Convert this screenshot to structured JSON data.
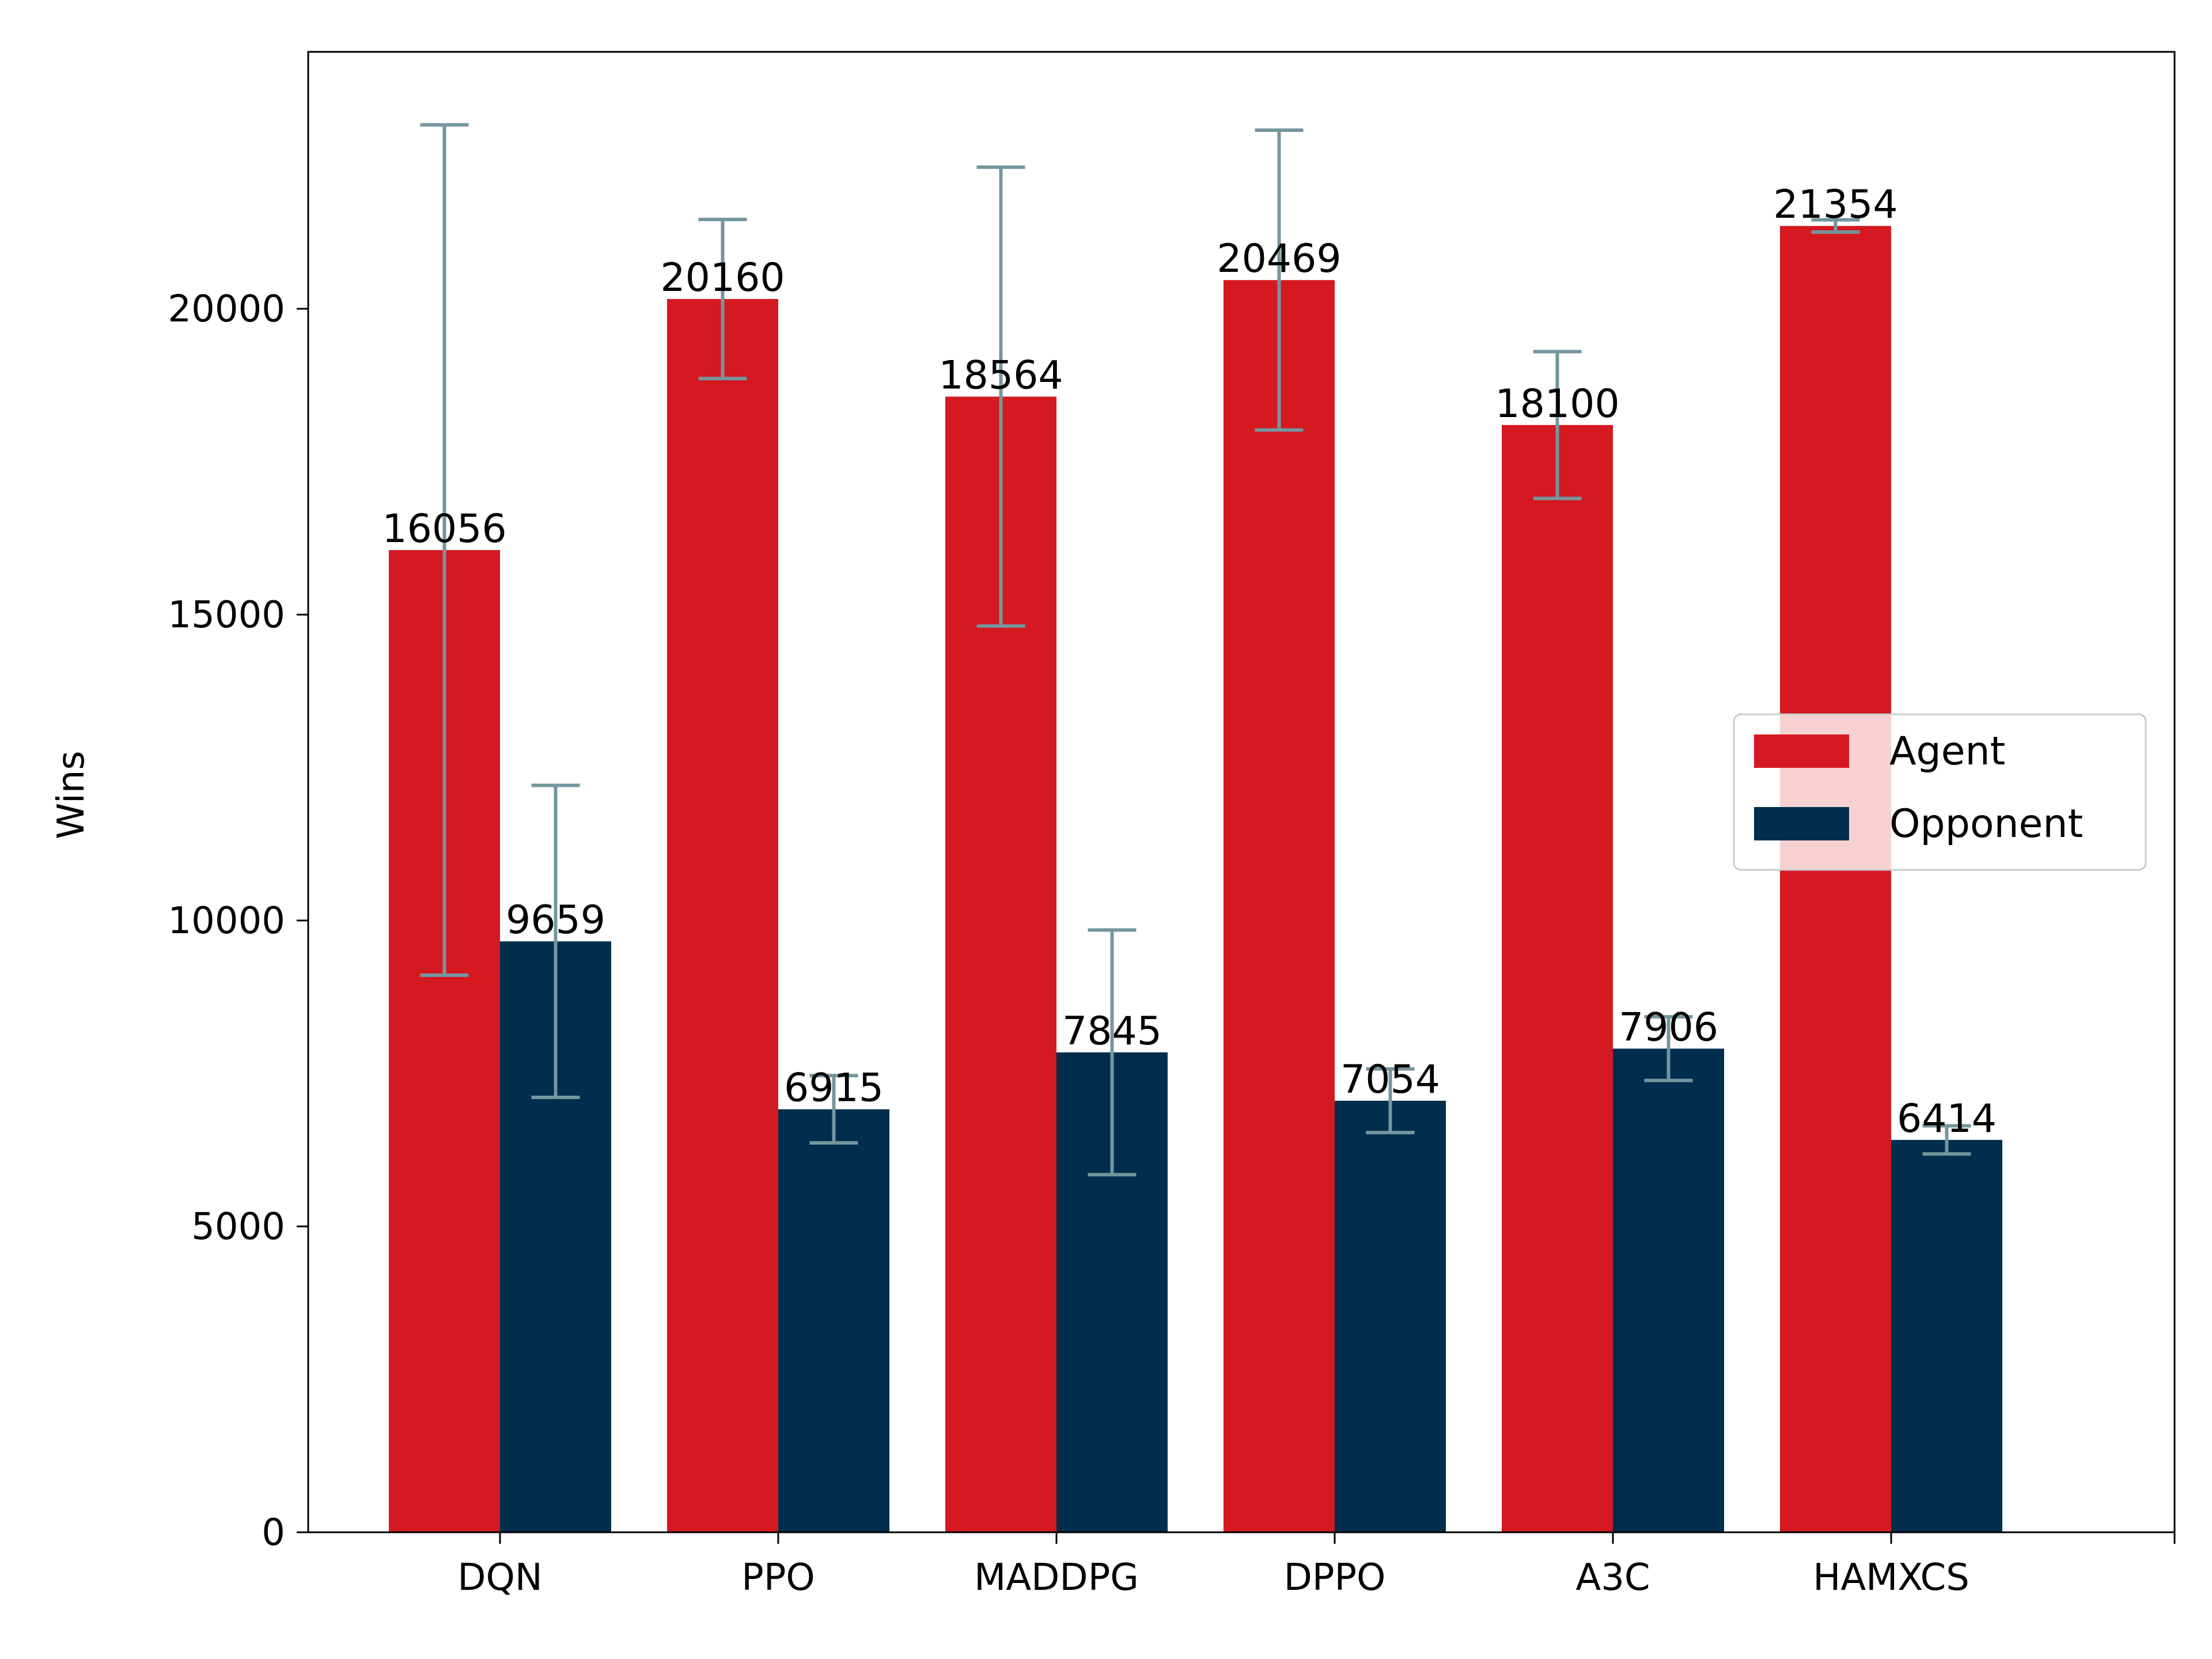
{
  "chart_data": {
    "type": "bar",
    "title": "",
    "xlabel": "",
    "ylabel": "Wins",
    "ylim": [
      0,
      24200
    ],
    "yticks": [
      0,
      5000,
      10000,
      15000,
      20000
    ],
    "grid": false,
    "legend_position": "center-right",
    "categories": [
      "DQN",
      "PPO",
      "MADDPG",
      "DPPO",
      "A3C",
      "HAMXCS"
    ],
    "series": [
      {
        "name": "Agent",
        "color": "#d41920",
        "values": [
          16056,
          20160,
          18564,
          20469,
          18100,
          21354
        ],
        "errors": [
          6950,
          1300,
          3750,
          2450,
          1200,
          100
        ]
      },
      {
        "name": "Opponent",
        "color": "#012e4c",
        "values": [
          9659,
          6915,
          7845,
          7054,
          7906,
          6414
        ],
        "errors": [
          2550,
          550,
          2000,
          520,
          520,
          230
        ]
      }
    ],
    "error_bar_color": "#74969f"
  }
}
